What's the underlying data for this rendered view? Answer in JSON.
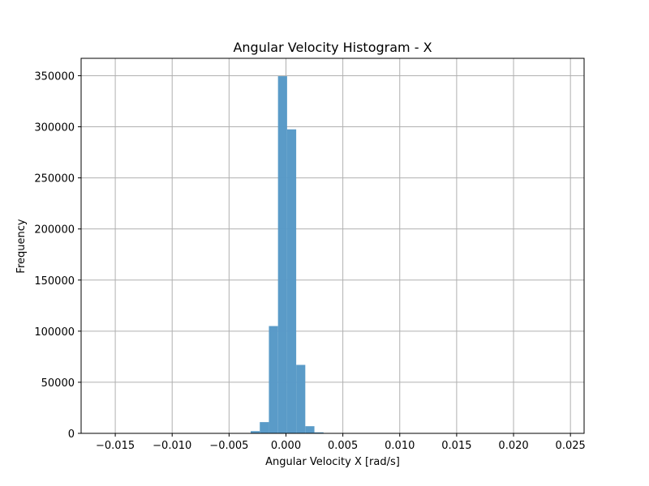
{
  "chart_data": {
    "type": "bar",
    "title": "Angular Velocity Histogram - X",
    "xlabel": "Angular Velocity X [rad/s]",
    "ylabel": "Frequency",
    "xlim": [
      -0.018,
      0.0262
    ],
    "ylim": [
      0,
      367000
    ],
    "x_ticks": [
      -0.015,
      -0.01,
      -0.005,
      0.0,
      0.005,
      0.01,
      0.015,
      0.02,
      0.025
    ],
    "x_tick_labels": [
      "−0.015",
      "−0.010",
      "−0.005",
      "0.000",
      "0.005",
      "0.010",
      "0.015",
      "0.020",
      "0.025"
    ],
    "y_ticks": [
      0,
      50000,
      100000,
      150000,
      200000,
      250000,
      300000,
      350000
    ],
    "y_tick_labels": [
      "0",
      "50000",
      "100000",
      "150000",
      "200000",
      "250000",
      "300000",
      "350000"
    ],
    "grid": true,
    "bar_color": "#5799c7",
    "bins": [
      {
        "x0": -0.0039,
        "x1": -0.0031,
        "count": 300
      },
      {
        "x0": -0.0031,
        "x1": -0.0023,
        "count": 2200
      },
      {
        "x0": -0.0023,
        "x1": -0.0015,
        "count": 11000
      },
      {
        "x0": -0.0015,
        "x1": -0.0007,
        "count": 105000
      },
      {
        "x0": -0.0007,
        "x1": 0.0001,
        "count": 349500
      },
      {
        "x0": 0.0001,
        "x1": 0.0009,
        "count": 297500
      },
      {
        "x0": 0.0009,
        "x1": 0.0017,
        "count": 67000
      },
      {
        "x0": 0.0017,
        "x1": 0.0025,
        "count": 7000
      },
      {
        "x0": 0.0025,
        "x1": 0.0033,
        "count": 1000
      },
      {
        "x0": 0.0033,
        "x1": 0.0041,
        "count": 300
      }
    ]
  }
}
